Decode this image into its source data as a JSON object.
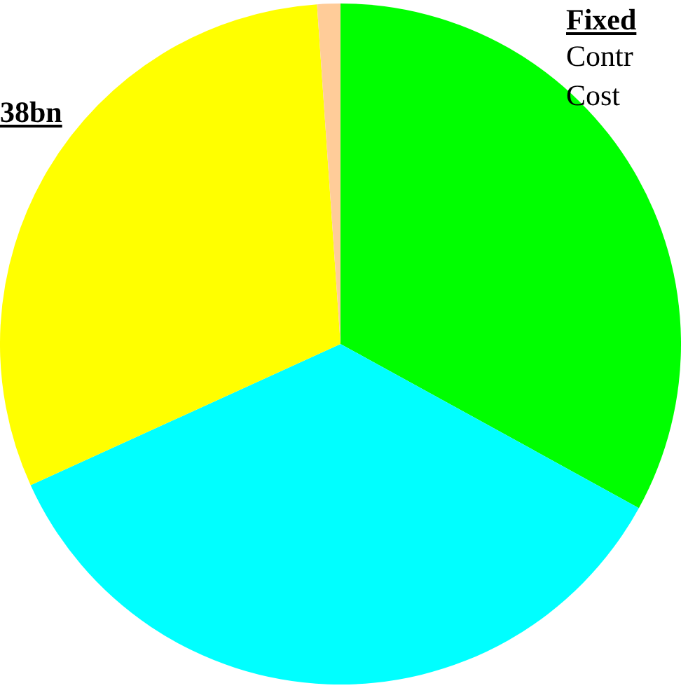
{
  "chart_data": {
    "type": "pie",
    "categories": [
      null,
      null,
      null,
      null
    ],
    "values": [
      33,
      35.2,
      30.7,
      1.1
    ],
    "colors": [
      "#00ff00",
      "#00ffff",
      "#ffff00",
      "#ffcc99"
    ],
    "annotations": [
      "38bn",
      "Fixed",
      "Contr",
      "Cost"
    ],
    "legend": false
  }
}
